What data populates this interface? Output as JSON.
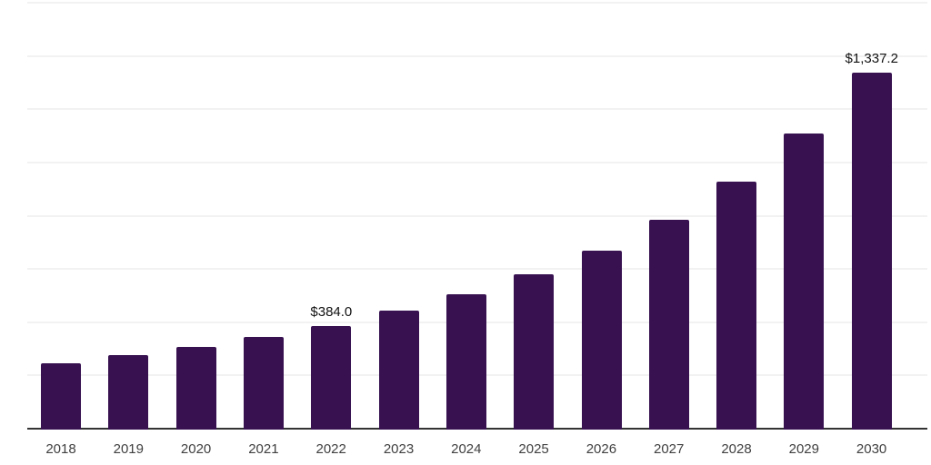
{
  "chart_data": {
    "type": "bar",
    "title": "",
    "xlabel": "",
    "ylabel": "",
    "categories": [
      "2018",
      "2019",
      "2020",
      "2021",
      "2022",
      "2023",
      "2024",
      "2025",
      "2026",
      "2027",
      "2028",
      "2029",
      "2030"
    ],
    "values": [
      244.8,
      275.4,
      306.0,
      343.4,
      384.0,
      442.0,
      505.6,
      581.4,
      669.8,
      783.0,
      928.2,
      1108.4,
      1337.2
    ],
    "value_labels": [
      "",
      "",
      "",
      "",
      "$384.0",
      "",
      "",
      "",
      "",
      "",
      "",
      "",
      "$1,337.2"
    ],
    "ylim": [
      0,
      1600
    ],
    "gridline_step": 200,
    "grid": "horizontal-only",
    "y_axis_tick_labels": "none",
    "legend_position": "none",
    "colors": {
      "bar": "#371150",
      "axis_line": "#333333",
      "gridline": "#f2f2f2",
      "tick_label": "#404040",
      "data_label": "#111111",
      "background": "#ffffff"
    }
  }
}
